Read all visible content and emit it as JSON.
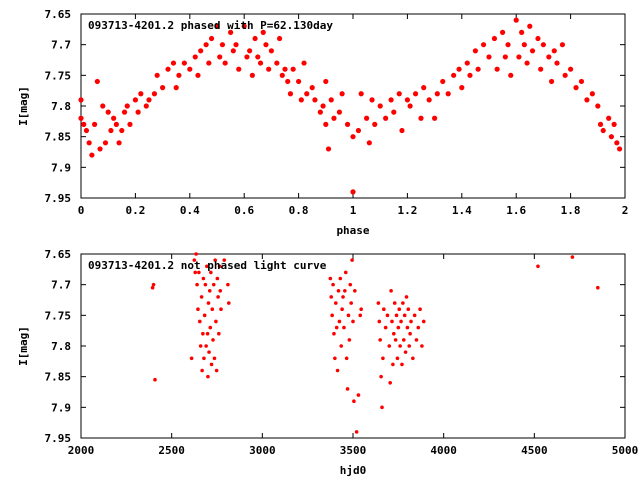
{
  "chart_data": [
    {
      "type": "scatter",
      "title": "093713-4201.2 phased with P=62.130day",
      "xlabel": "phase",
      "ylabel": "I[mag]",
      "xlim": [
        0,
        2
      ],
      "ylim": [
        7.95,
        7.65
      ],
      "y_inverted": true,
      "xticks": [
        "0",
        "0.2",
        "0.4",
        "0.6",
        "0.8",
        "1",
        "1.2",
        "1.4",
        "1.6",
        "1.8",
        "2"
      ],
      "yticks": [
        "7.65",
        "7.7",
        "7.75",
        "7.8",
        "7.85",
        "7.9",
        "7.95"
      ],
      "xtick_values": [
        0,
        0.2,
        0.4,
        0.6,
        0.8,
        1.0,
        1.2,
        1.4,
        1.6,
        1.8,
        2.0
      ],
      "ytick_values": [
        7.65,
        7.7,
        7.75,
        7.8,
        7.85,
        7.9,
        7.95
      ],
      "grid": false,
      "point_color": "#ff0000",
      "points": [
        [
          0.0,
          7.79
        ],
        [
          0.0,
          7.82
        ],
        [
          0.01,
          7.83
        ],
        [
          0.02,
          7.84
        ],
        [
          0.03,
          7.86
        ],
        [
          0.04,
          7.88
        ],
        [
          0.05,
          7.83
        ],
        [
          0.06,
          7.76
        ],
        [
          0.07,
          7.87
        ],
        [
          0.08,
          7.8
        ],
        [
          0.09,
          7.86
        ],
        [
          0.1,
          7.81
        ],
        [
          0.11,
          7.84
        ],
        [
          0.12,
          7.82
        ],
        [
          0.13,
          7.83
        ],
        [
          0.14,
          7.86
        ],
        [
          0.15,
          7.84
        ],
        [
          0.16,
          7.81
        ],
        [
          0.17,
          7.8
        ],
        [
          0.18,
          7.83
        ],
        [
          0.2,
          7.79
        ],
        [
          0.21,
          7.81
        ],
        [
          0.22,
          7.78
        ],
        [
          0.24,
          7.8
        ],
        [
          0.25,
          7.79
        ],
        [
          0.27,
          7.78
        ],
        [
          0.28,
          7.75
        ],
        [
          0.3,
          7.77
        ],
        [
          0.32,
          7.74
        ],
        [
          0.34,
          7.73
        ],
        [
          0.35,
          7.77
        ],
        [
          0.36,
          7.75
        ],
        [
          0.38,
          7.73
        ],
        [
          0.4,
          7.74
        ],
        [
          0.42,
          7.72
        ],
        [
          0.43,
          7.75
        ],
        [
          0.44,
          7.71
        ],
        [
          0.46,
          7.7
        ],
        [
          0.47,
          7.73
        ],
        [
          0.48,
          7.69
        ],
        [
          0.5,
          7.67
        ],
        [
          0.51,
          7.72
        ],
        [
          0.52,
          7.7
        ],
        [
          0.53,
          7.73
        ],
        [
          0.55,
          7.68
        ],
        [
          0.56,
          7.71
        ],
        [
          0.57,
          7.7
        ],
        [
          0.58,
          7.74
        ],
        [
          0.6,
          7.67
        ],
        [
          0.61,
          7.72
        ],
        [
          0.62,
          7.71
        ],
        [
          0.63,
          7.75
        ],
        [
          0.64,
          7.69
        ],
        [
          0.65,
          7.72
        ],
        [
          0.66,
          7.73
        ],
        [
          0.67,
          7.68
        ],
        [
          0.68,
          7.7
        ],
        [
          0.69,
          7.74
        ],
        [
          0.7,
          7.71
        ],
        [
          0.72,
          7.73
        ],
        [
          0.73,
          7.69
        ],
        [
          0.74,
          7.75
        ],
        [
          0.75,
          7.74
        ],
        [
          0.76,
          7.76
        ],
        [
          0.77,
          7.78
        ],
        [
          0.78,
          7.74
        ],
        [
          0.8,
          7.76
        ],
        [
          0.81,
          7.79
        ],
        [
          0.82,
          7.73
        ],
        [
          0.83,
          7.78
        ],
        [
          0.85,
          7.77
        ],
        [
          0.86,
          7.79
        ],
        [
          0.88,
          7.81
        ],
        [
          0.89,
          7.8
        ],
        [
          0.9,
          7.76
        ],
        [
          0.9,
          7.83
        ],
        [
          0.91,
          7.87
        ],
        [
          0.92,
          7.79
        ],
        [
          0.93,
          7.82
        ],
        [
          0.95,
          7.81
        ],
        [
          0.96,
          7.78
        ],
        [
          0.98,
          7.83
        ],
        [
          1.0,
          7.94
        ],
        [
          1.0,
          7.85
        ],
        [
          1.02,
          7.84
        ],
        [
          1.03,
          7.78
        ],
        [
          1.05,
          7.82
        ],
        [
          1.06,
          7.86
        ],
        [
          1.07,
          7.79
        ],
        [
          1.08,
          7.83
        ],
        [
          1.1,
          7.8
        ],
        [
          1.12,
          7.82
        ],
        [
          1.14,
          7.79
        ],
        [
          1.15,
          7.81
        ],
        [
          1.17,
          7.78
        ],
        [
          1.18,
          7.84
        ],
        [
          1.2,
          7.79
        ],
        [
          1.21,
          7.8
        ],
        [
          1.23,
          7.78
        ],
        [
          1.25,
          7.82
        ],
        [
          1.26,
          7.77
        ],
        [
          1.28,
          7.79
        ],
        [
          1.3,
          7.82
        ],
        [
          1.31,
          7.78
        ],
        [
          1.33,
          7.76
        ],
        [
          1.35,
          7.78
        ],
        [
          1.37,
          7.75
        ],
        [
          1.39,
          7.74
        ],
        [
          1.4,
          7.77
        ],
        [
          1.42,
          7.73
        ],
        [
          1.43,
          7.75
        ],
        [
          1.45,
          7.71
        ],
        [
          1.46,
          7.74
        ],
        [
          1.48,
          7.7
        ],
        [
          1.5,
          7.72
        ],
        [
          1.52,
          7.69
        ],
        [
          1.53,
          7.74
        ],
        [
          1.55,
          7.68
        ],
        [
          1.56,
          7.72
        ],
        [
          1.57,
          7.7
        ],
        [
          1.58,
          7.75
        ],
        [
          1.6,
          7.66
        ],
        [
          1.61,
          7.72
        ],
        [
          1.62,
          7.68
        ],
        [
          1.63,
          7.7
        ],
        [
          1.64,
          7.73
        ],
        [
          1.65,
          7.67
        ],
        [
          1.66,
          7.71
        ],
        [
          1.68,
          7.69
        ],
        [
          1.69,
          7.74
        ],
        [
          1.7,
          7.7
        ],
        [
          1.72,
          7.72
        ],
        [
          1.73,
          7.76
        ],
        [
          1.74,
          7.71
        ],
        [
          1.75,
          7.73
        ],
        [
          1.77,
          7.7
        ],
        [
          1.78,
          7.75
        ],
        [
          1.8,
          7.74
        ],
        [
          1.82,
          7.77
        ],
        [
          1.84,
          7.76
        ],
        [
          1.86,
          7.79
        ],
        [
          1.88,
          7.78
        ],
        [
          1.9,
          7.8
        ],
        [
          1.91,
          7.83
        ],
        [
          1.92,
          7.84
        ],
        [
          1.94,
          7.82
        ],
        [
          1.95,
          7.85
        ],
        [
          1.96,
          7.83
        ],
        [
          1.97,
          7.86
        ],
        [
          1.98,
          7.87
        ]
      ]
    },
    {
      "type": "scatter",
      "title": "093713-4201.2 not phased light curve",
      "xlabel": "hjd0",
      "ylabel": "I[mag]",
      "xlim": [
        2000,
        5000
      ],
      "ylim": [
        7.95,
        7.65
      ],
      "y_inverted": true,
      "xticks": [
        "2000",
        "2500",
        "3000",
        "3500",
        "4000",
        "4500",
        "5000"
      ],
      "yticks": [
        "7.65",
        "7.7",
        "7.75",
        "7.8",
        "7.85",
        "7.9",
        "7.95"
      ],
      "xtick_values": [
        2000,
        2500,
        3000,
        3500,
        4000,
        4500,
        5000
      ],
      "ytick_values": [
        7.65,
        7.7,
        7.75,
        7.8,
        7.85,
        7.9,
        7.95
      ],
      "grid": false,
      "point_color": "#ff0000",
      "points": [
        [
          2395,
          7.705
        ],
        [
          2400,
          7.7
        ],
        [
          2408,
          7.855
        ],
        [
          2610,
          7.82
        ],
        [
          2625,
          7.66
        ],
        [
          2630,
          7.68
        ],
        [
          2635,
          7.65
        ],
        [
          2640,
          7.7
        ],
        [
          2645,
          7.74
        ],
        [
          2650,
          7.68
        ],
        [
          2655,
          7.76
        ],
        [
          2660,
          7.8
        ],
        [
          2665,
          7.72
        ],
        [
          2668,
          7.84
        ],
        [
          2672,
          7.78
        ],
        [
          2675,
          7.69
        ],
        [
          2678,
          7.82
        ],
        [
          2682,
          7.75
        ],
        [
          2686,
          7.7
        ],
        [
          2690,
          7.8
        ],
        [
          2694,
          7.67
        ],
        [
          2698,
          7.78
        ],
        [
          2700,
          7.85
        ],
        [
          2703,
          7.73
        ],
        [
          2706,
          7.81
        ],
        [
          2710,
          7.71
        ],
        [
          2713,
          7.77
        ],
        [
          2716,
          7.68
        ],
        [
          2720,
          7.83
        ],
        [
          2724,
          7.74
        ],
        [
          2728,
          7.79
        ],
        [
          2732,
          7.7
        ],
        [
          2736,
          7.82
        ],
        [
          2740,
          7.66
        ],
        [
          2744,
          7.76
        ],
        [
          2748,
          7.84
        ],
        [
          2752,
          7.69
        ],
        [
          2756,
          7.72
        ],
        [
          2760,
          7.78
        ],
        [
          2764,
          7.67
        ],
        [
          2768,
          7.71
        ],
        [
          2772,
          7.74
        ],
        [
          2790,
          7.66
        ],
        [
          2810,
          7.7
        ],
        [
          2815,
          7.73
        ],
        [
          3375,
          7.69
        ],
        [
          3380,
          7.72
        ],
        [
          3385,
          7.75
        ],
        [
          3390,
          7.7
        ],
        [
          3395,
          7.78
        ],
        [
          3400,
          7.82
        ],
        [
          3405,
          7.73
        ],
        [
          3410,
          7.77
        ],
        [
          3415,
          7.84
        ],
        [
          3420,
          7.71
        ],
        [
          3425,
          7.76
        ],
        [
          3430,
          7.69
        ],
        [
          3435,
          7.8
        ],
        [
          3440,
          7.74
        ],
        [
          3445,
          7.72
        ],
        [
          3450,
          7.77
        ],
        [
          3455,
          7.71
        ],
        [
          3460,
          7.68
        ],
        [
          3465,
          7.82
        ],
        [
          3470,
          7.87
        ],
        [
          3475,
          7.75
        ],
        [
          3480,
          7.79
        ],
        [
          3485,
          7.7
        ],
        [
          3490,
          7.73
        ],
        [
          3495,
          7.66
        ],
        [
          3500,
          7.76
        ],
        [
          3505,
          7.89
        ],
        [
          3510,
          7.71
        ],
        [
          3520,
          7.94
        ],
        [
          3530,
          7.88
        ],
        [
          3540,
          7.75
        ],
        [
          3545,
          7.74
        ],
        [
          3640,
          7.73
        ],
        [
          3645,
          7.76
        ],
        [
          3650,
          7.79
        ],
        [
          3655,
          7.85
        ],
        [
          3660,
          7.9
        ],
        [
          3665,
          7.82
        ],
        [
          3670,
          7.74
        ],
        [
          3680,
          7.77
        ],
        [
          3690,
          7.75
        ],
        [
          3700,
          7.8
        ],
        [
          3705,
          7.86
        ],
        [
          3710,
          7.71
        ],
        [
          3715,
          7.76
        ],
        [
          3720,
          7.83
        ],
        [
          3725,
          7.78
        ],
        [
          3730,
          7.73
        ],
        [
          3735,
          7.79
        ],
        [
          3740,
          7.75
        ],
        [
          3745,
          7.82
        ],
        [
          3750,
          7.77
        ],
        [
          3755,
          7.74
        ],
        [
          3760,
          7.8
        ],
        [
          3765,
          7.76
        ],
        [
          3770,
          7.83
        ],
        [
          3775,
          7.73
        ],
        [
          3780,
          7.79
        ],
        [
          3785,
          7.75
        ],
        [
          3790,
          7.81
        ],
        [
          3795,
          7.72
        ],
        [
          3800,
          7.77
        ],
        [
          3805,
          7.74
        ],
        [
          3810,
          7.8
        ],
        [
          3815,
          7.78
        ],
        [
          3820,
          7.76
        ],
        [
          3830,
          7.82
        ],
        [
          3840,
          7.75
        ],
        [
          3850,
          7.79
        ],
        [
          3860,
          7.77
        ],
        [
          3870,
          7.74
        ],
        [
          3880,
          7.8
        ],
        [
          3890,
          7.76
        ],
        [
          4520,
          7.67
        ],
        [
          4710,
          7.655
        ],
        [
          4850,
          7.705
        ]
      ]
    }
  ]
}
